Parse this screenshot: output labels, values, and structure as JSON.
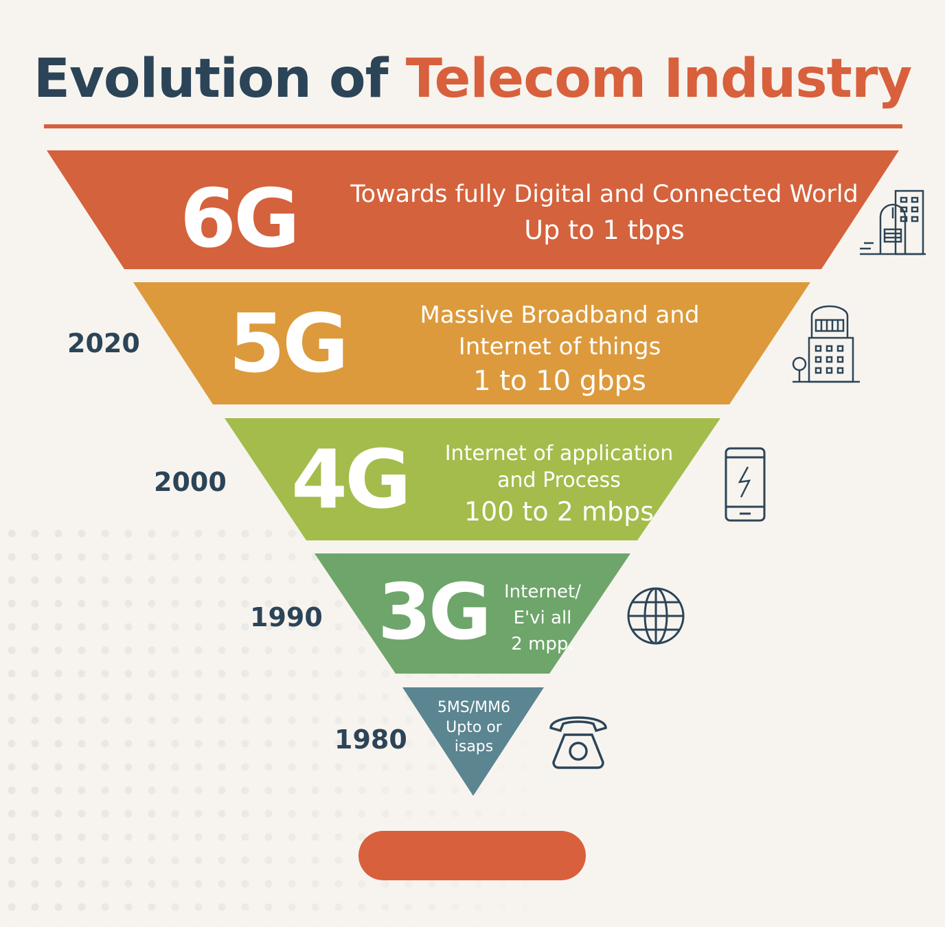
{
  "title": {
    "part1": "Evolution of",
    "part2": "Telecom Industry"
  },
  "colors": {
    "title_dark": "#2c4457",
    "accent": "#d8603c",
    "g6": "#d4623c",
    "g5": "#dc9a3c",
    "g4": "#a3bc4b",
    "g3": "#6ea56a",
    "g2": "#5b8590",
    "icon": "#2c4457"
  },
  "generations": [
    {
      "gen": "6G",
      "line1": "Towards fully Digital and Connected World",
      "speed": "Up to 1 tbps",
      "icon": "buildings-icon"
    },
    {
      "gen": "5G",
      "year": "2020",
      "line1": "Massive Broadband and",
      "line2": "Internet of things",
      "speed": "1 to 10 gbps",
      "icon": "city-building-icon"
    },
    {
      "gen": "4G",
      "year": "2000",
      "line1": "Internet of application",
      "line2": "and Process",
      "speed": "100 to 2 mbps",
      "icon": "smartphone-icon"
    },
    {
      "gen": "3G",
      "year": "1990",
      "line1": "Internet/",
      "line2": "E'vi all",
      "speed": "2 mpp.",
      "icon": "globe-icon"
    },
    {
      "year": "1980",
      "line1": "5MS/MM6",
      "line2": "Upto or",
      "line3": "isaps",
      "icon": "telephone-icon"
    }
  ]
}
